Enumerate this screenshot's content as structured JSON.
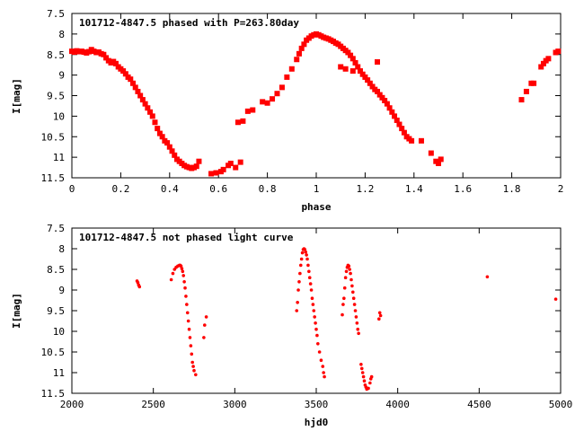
{
  "chart_data": [
    {
      "type": "scatter",
      "title": "101712-4847.5 phased with P=263.80day",
      "xlabel": "phase",
      "ylabel": "I[mag]",
      "xlim": [
        0,
        2
      ],
      "ylim": [
        11.5,
        7.5
      ],
      "y_inverted": true,
      "xticks": [
        "0",
        "0.2",
        "0.4",
        "0.6",
        "0.8",
        "1",
        "1.2",
        "1.4",
        "1.6",
        "1.8",
        "2"
      ],
      "yticks": [
        "7.5",
        "8",
        "8.5",
        "9",
        "9.5",
        "10",
        "10.5",
        "11",
        "11.5"
      ],
      "grid": false,
      "marker_color": "#ff0000",
      "marker": "filled-square",
      "series": [
        {
          "points": [
            [
              0.0,
              8.42
            ],
            [
              0.01,
              8.44
            ],
            [
              0.02,
              8.41
            ],
            [
              0.03,
              8.43
            ],
            [
              0.04,
              8.42
            ],
            [
              0.05,
              8.44
            ],
            [
              0.06,
              8.46
            ],
            [
              0.07,
              8.43
            ],
            [
              0.08,
              8.38
            ],
            [
              0.09,
              8.42
            ],
            [
              0.1,
              8.45
            ],
            [
              0.11,
              8.44
            ],
            [
              0.12,
              8.48
            ],
            [
              0.13,
              8.5
            ],
            [
              0.14,
              8.58
            ],
            [
              0.15,
              8.65
            ],
            [
              0.16,
              8.7
            ],
            [
              0.17,
              8.67
            ],
            [
              0.18,
              8.72
            ],
            [
              0.19,
              8.8
            ],
            [
              0.2,
              8.85
            ],
            [
              0.21,
              8.9
            ],
            [
              0.22,
              8.97
            ],
            [
              0.23,
              9.05
            ],
            [
              0.24,
              9.1
            ],
            [
              0.25,
              9.2
            ],
            [
              0.26,
              9.3
            ],
            [
              0.27,
              9.4
            ],
            [
              0.28,
              9.5
            ],
            [
              0.29,
              9.6
            ],
            [
              0.3,
              9.7
            ],
            [
              0.31,
              9.8
            ],
            [
              0.32,
              9.9
            ],
            [
              0.33,
              10.0
            ],
            [
              0.34,
              10.15
            ],
            [
              0.35,
              10.3
            ],
            [
              0.36,
              10.42
            ],
            [
              0.37,
              10.5
            ],
            [
              0.38,
              10.6
            ],
            [
              0.39,
              10.65
            ],
            [
              0.4,
              10.75
            ],
            [
              0.41,
              10.85
            ],
            [
              0.42,
              10.95
            ],
            [
              0.43,
              11.05
            ],
            [
              0.44,
              11.1
            ],
            [
              0.45,
              11.15
            ],
            [
              0.46,
              11.2
            ],
            [
              0.47,
              11.23
            ],
            [
              0.48,
              11.25
            ],
            [
              0.49,
              11.27
            ],
            [
              0.5,
              11.25
            ],
            [
              0.51,
              11.22
            ],
            [
              0.52,
              11.1
            ],
            [
              0.57,
              11.4
            ],
            [
              0.59,
              11.38
            ],
            [
              0.61,
              11.35
            ],
            [
              0.62,
              11.3
            ],
            [
              0.64,
              11.2
            ],
            [
              0.65,
              11.15
            ],
            [
              0.67,
              11.25
            ],
            [
              0.69,
              11.12
            ],
            [
              0.68,
              10.15
            ],
            [
              0.7,
              10.12
            ],
            [
              0.72,
              9.88
            ],
            [
              0.74,
              9.85
            ],
            [
              0.78,
              9.65
            ],
            [
              0.8,
              9.68
            ],
            [
              0.82,
              9.58
            ],
            [
              0.84,
              9.45
            ],
            [
              0.86,
              9.3
            ],
            [
              0.88,
              9.05
            ],
            [
              0.9,
              8.85
            ],
            [
              0.92,
              8.62
            ],
            [
              0.93,
              8.48
            ],
            [
              0.94,
              8.35
            ],
            [
              0.95,
              8.25
            ],
            [
              0.96,
              8.15
            ],
            [
              0.97,
              8.1
            ],
            [
              0.98,
              8.05
            ],
            [
              0.99,
              8.02
            ],
            [
              1.0,
              8.0
            ],
            [
              1.01,
              8.02
            ],
            [
              1.02,
              8.05
            ],
            [
              1.03,
              8.08
            ],
            [
              1.04,
              8.1
            ],
            [
              1.05,
              8.12
            ],
            [
              1.06,
              8.15
            ],
            [
              1.07,
              8.18
            ],
            [
              1.08,
              8.22
            ],
            [
              1.09,
              8.25
            ],
            [
              1.1,
              8.3
            ],
            [
              1.11,
              8.35
            ],
            [
              1.12,
              8.4
            ],
            [
              1.13,
              8.45
            ],
            [
              1.14,
              8.52
            ],
            [
              1.15,
              8.6
            ],
            [
              1.16,
              8.7
            ],
            [
              1.17,
              8.8
            ],
            [
              1.18,
              8.9
            ],
            [
              1.19,
              8.98
            ],
            [
              1.2,
              9.05
            ],
            [
              1.21,
              9.12
            ],
            [
              1.22,
              9.2
            ],
            [
              1.23,
              9.28
            ],
            [
              1.24,
              9.35
            ],
            [
              1.25,
              9.4
            ],
            [
              1.26,
              9.48
            ],
            [
              1.27,
              9.55
            ],
            [
              1.28,
              9.62
            ],
            [
              1.29,
              9.7
            ],
            [
              1.3,
              9.8
            ],
            [
              1.31,
              9.9
            ],
            [
              1.32,
              10.0
            ],
            [
              1.33,
              10.1
            ],
            [
              1.34,
              10.2
            ],
            [
              1.35,
              10.3
            ],
            [
              1.36,
              10.4
            ],
            [
              1.37,
              10.5
            ],
            [
              1.38,
              10.55
            ],
            [
              1.39,
              10.6
            ],
            [
              1.1,
              8.8
            ],
            [
              1.12,
              8.85
            ],
            [
              1.15,
              8.9
            ],
            [
              1.25,
              8.68
            ],
            [
              1.43,
              10.6
            ],
            [
              1.47,
              10.9
            ],
            [
              1.49,
              11.1
            ],
            [
              1.5,
              11.15
            ],
            [
              1.51,
              11.05
            ],
            [
              1.84,
              9.6
            ],
            [
              1.86,
              9.4
            ],
            [
              1.88,
              9.2
            ],
            [
              1.89,
              9.2
            ],
            [
              1.92,
              8.8
            ],
            [
              1.93,
              8.72
            ],
            [
              1.94,
              8.65
            ],
            [
              1.95,
              8.6
            ],
            [
              1.98,
              8.45
            ],
            [
              1.99,
              8.42
            ]
          ]
        }
      ]
    },
    {
      "type": "scatter",
      "title": "101712-4847.5 not phased light curve",
      "xlabel": "hjd0",
      "ylabel": "I[mag]",
      "xlim": [
        2000,
        5000
      ],
      "ylim": [
        11.5,
        7.5
      ],
      "y_inverted": true,
      "xticks": [
        "2000",
        "2500",
        "3000",
        "3500",
        "4000",
        "4500",
        "5000"
      ],
      "yticks": [
        "7.5",
        "8",
        "8.5",
        "9",
        "9.5",
        "10",
        "10.5",
        "11",
        "11.5"
      ],
      "grid": false,
      "marker_color": "#ff0000",
      "marker": "small-dot",
      "series": [
        {
          "points": [
            [
              2400,
              8.78
            ],
            [
              2405,
              8.82
            ],
            [
              2410,
              8.88
            ],
            [
              2415,
              8.92
            ],
            [
              2610,
              8.75
            ],
            [
              2620,
              8.6
            ],
            [
              2630,
              8.5
            ],
            [
              2640,
              8.45
            ],
            [
              2650,
              8.42
            ],
            [
              2660,
              8.4
            ],
            [
              2665,
              8.4
            ],
            [
              2670,
              8.42
            ],
            [
              2675,
              8.48
            ],
            [
              2680,
              8.55
            ],
            [
              2685,
              8.65
            ],
            [
              2690,
              8.8
            ],
            [
              2695,
              8.95
            ],
            [
              2700,
              9.15
            ],
            [
              2705,
              9.35
            ],
            [
              2710,
              9.55
            ],
            [
              2715,
              9.75
            ],
            [
              2720,
              9.95
            ],
            [
              2725,
              10.15
            ],
            [
              2730,
              10.35
            ],
            [
              2735,
              10.55
            ],
            [
              2740,
              10.75
            ],
            [
              2745,
              10.85
            ],
            [
              2750,
              10.95
            ],
            [
              2760,
              11.05
            ],
            [
              2810,
              10.15
            ],
            [
              2815,
              9.85
            ],
            [
              2825,
              9.65
            ],
            [
              3380,
              9.5
            ],
            [
              3385,
              9.3
            ],
            [
              3390,
              9.0
            ],
            [
              3395,
              8.8
            ],
            [
              3400,
              8.6
            ],
            [
              3405,
              8.4
            ],
            [
              3410,
              8.25
            ],
            [
              3415,
              8.1
            ],
            [
              3420,
              8.02
            ],
            [
              3425,
              8.0
            ],
            [
              3430,
              8.02
            ],
            [
              3435,
              8.08
            ],
            [
              3440,
              8.15
            ],
            [
              3445,
              8.25
            ],
            [
              3450,
              8.4
            ],
            [
              3455,
              8.55
            ],
            [
              3460,
              8.7
            ],
            [
              3465,
              8.85
            ],
            [
              3470,
              9.0
            ],
            [
              3475,
              9.2
            ],
            [
              3480,
              9.35
            ],
            [
              3485,
              9.5
            ],
            [
              3490,
              9.65
            ],
            [
              3495,
              9.8
            ],
            [
              3500,
              9.95
            ],
            [
              3505,
              10.1
            ],
            [
              3510,
              10.3
            ],
            [
              3520,
              10.5
            ],
            [
              3530,
              10.7
            ],
            [
              3540,
              10.85
            ],
            [
              3545,
              11.0
            ],
            [
              3550,
              11.1
            ],
            [
              3660,
              9.6
            ],
            [
              3665,
              9.35
            ],
            [
              3670,
              9.2
            ],
            [
              3675,
              8.95
            ],
            [
              3680,
              8.7
            ],
            [
              3685,
              8.55
            ],
            [
              3690,
              8.45
            ],
            [
              3695,
              8.4
            ],
            [
              3700,
              8.42
            ],
            [
              3705,
              8.5
            ],
            [
              3710,
              8.6
            ],
            [
              3715,
              8.75
            ],
            [
              3720,
              8.9
            ],
            [
              3725,
              9.05
            ],
            [
              3730,
              9.2
            ],
            [
              3735,
              9.35
            ],
            [
              3740,
              9.5
            ],
            [
              3745,
              9.65
            ],
            [
              3750,
              9.8
            ],
            [
              3755,
              9.95
            ],
            [
              3760,
              10.05
            ],
            [
              3775,
              10.8
            ],
            [
              3780,
              10.9
            ],
            [
              3785,
              11.0
            ],
            [
              3790,
              11.1
            ],
            [
              3795,
              11.2
            ],
            [
              3800,
              11.3
            ],
            [
              3805,
              11.35
            ],
            [
              3810,
              11.4
            ],
            [
              3820,
              11.38
            ],
            [
              3830,
              11.25
            ],
            [
              3835,
              11.15
            ],
            [
              3840,
              11.1
            ],
            [
              3885,
              9.7
            ],
            [
              3890,
              9.55
            ],
            [
              3895,
              9.62
            ],
            [
              4550,
              8.68
            ],
            [
              4970,
              9.22
            ]
          ]
        }
      ]
    }
  ]
}
